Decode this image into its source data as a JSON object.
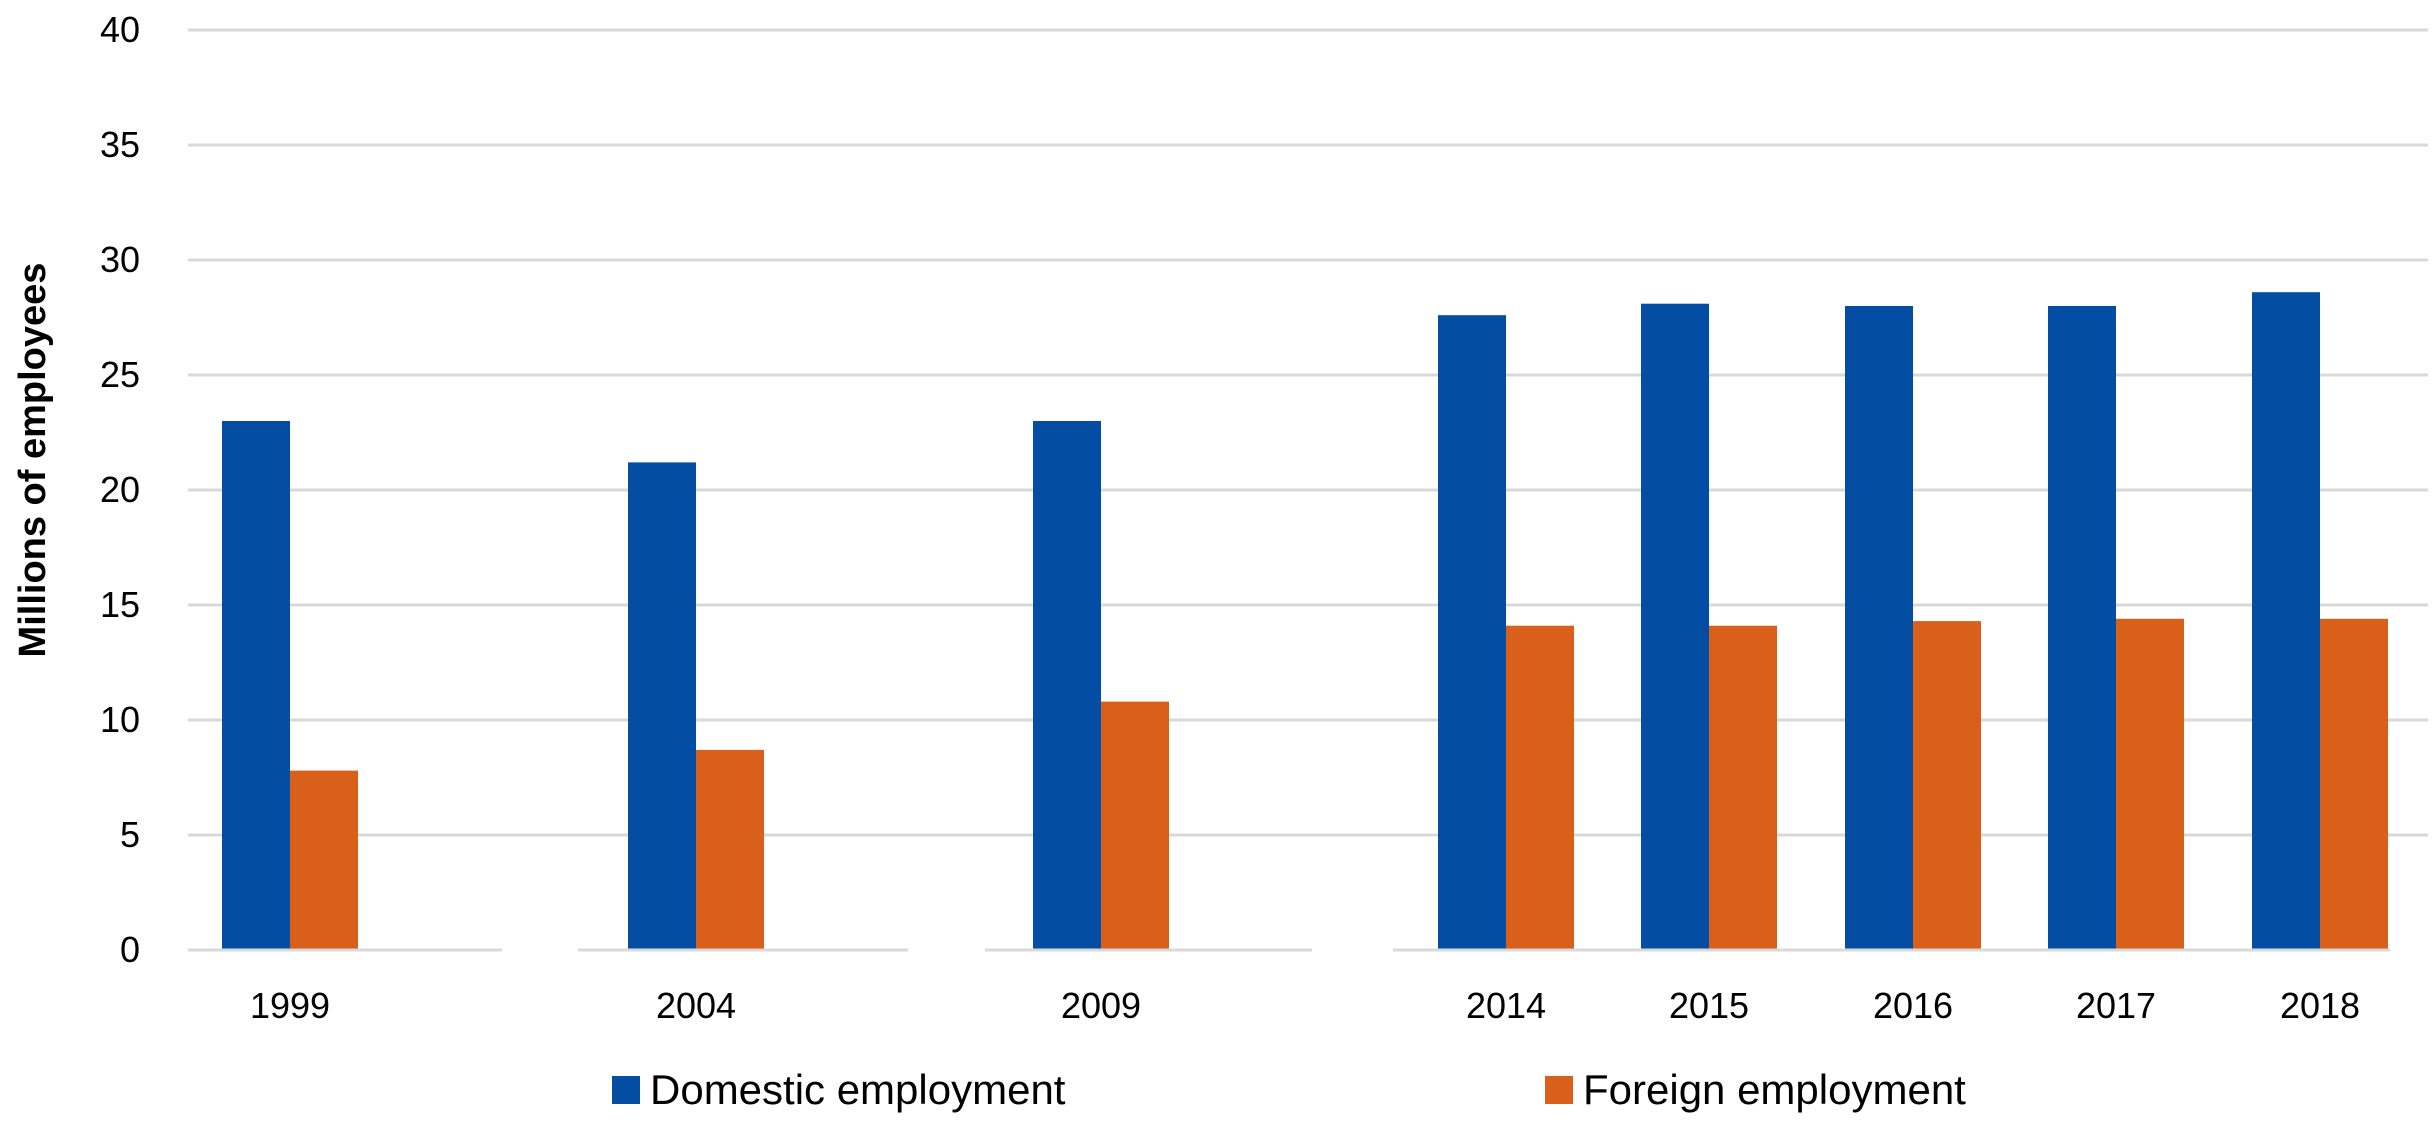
{
  "chart_data": {
    "type": "bar",
    "title": "",
    "xlabel": "",
    "ylabel": "Millions of employees",
    "ylim": [
      0,
      40
    ],
    "yticks": [
      0,
      5,
      10,
      15,
      20,
      25,
      30,
      35,
      40
    ],
    "grid": true,
    "legend_position": "bottom",
    "categories": [
      "1999",
      "2004",
      "2009",
      "2014",
      "2015",
      "2016",
      "2017",
      "2018"
    ],
    "series": [
      {
        "name": "Domestic employment",
        "color": "#034EA2",
        "values": [
          23.0,
          21.2,
          23.0,
          27.6,
          28.1,
          28.0,
          28.0,
          28.6
        ]
      },
      {
        "name": "Foreign employment",
        "color": "#D9601A",
        "values": [
          7.8,
          8.7,
          10.8,
          14.1,
          14.1,
          14.3,
          14.4,
          14.4
        ]
      }
    ]
  }
}
